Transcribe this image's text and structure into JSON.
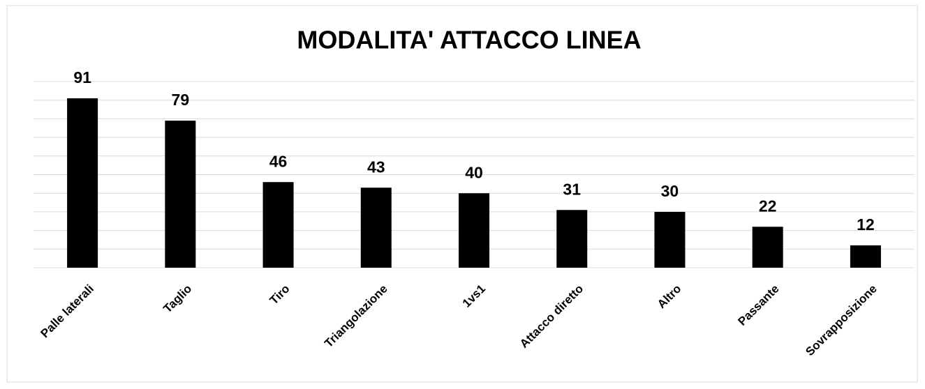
{
  "chart_data": {
    "type": "bar",
    "title": "MODALITA' ATTACCO LINEA",
    "categories": [
      "Palle laterali",
      "Taglio",
      "Tiro",
      "Triangolazione",
      "1vs1",
      "Attacco diretto",
      "Altro",
      "Passante",
      "Sovrapposizione"
    ],
    "values": [
      91,
      79,
      46,
      43,
      40,
      31,
      30,
      22,
      12
    ],
    "color": "#000000",
    "ylim": [
      0,
      100
    ],
    "yticks": [
      0,
      10,
      20,
      30,
      40,
      50,
      60,
      70,
      80,
      90,
      100
    ],
    "grid": true
  }
}
